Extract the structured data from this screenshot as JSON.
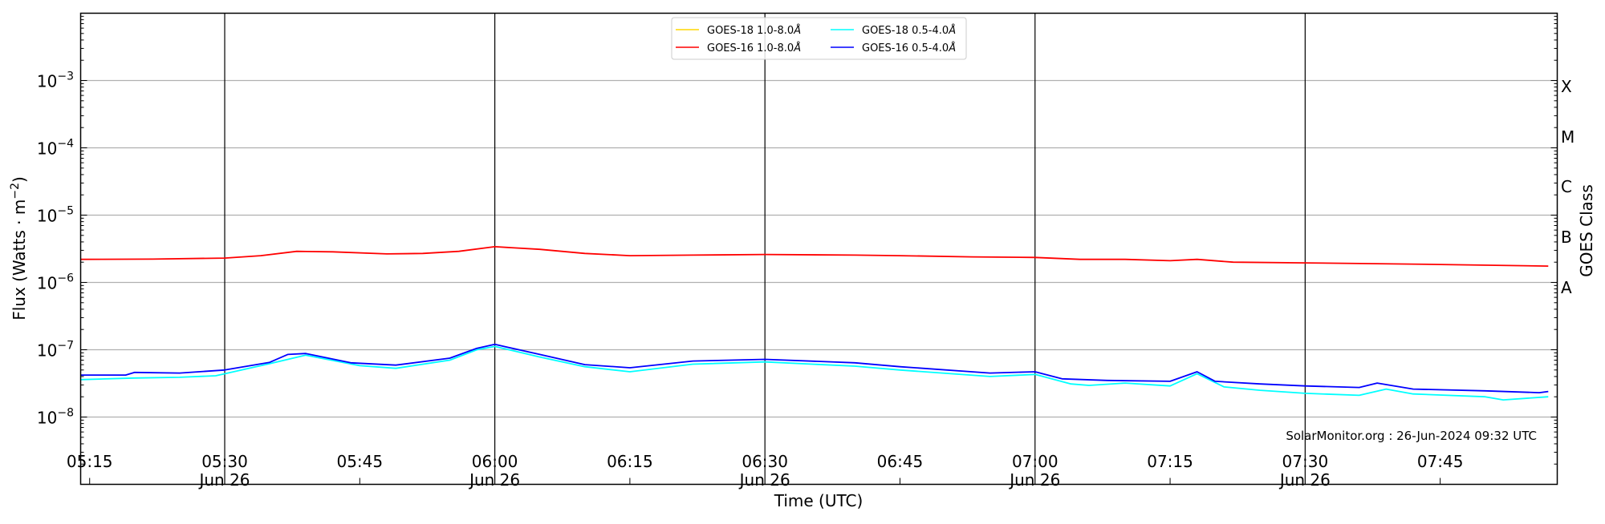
{
  "chart_data": {
    "type": "line",
    "xlabel": "Time (UTC)",
    "ylabel": "Flux (Watts · m",
    "ylabel_exponent": "−2",
    "ylabel_close": ")",
    "right_axis_label": "GOES Class",
    "y_scale": "log",
    "ylim": [
      1e-09,
      0.01
    ],
    "xlim": [
      "05:14",
      "07:58"
    ],
    "grid": "horizontal at decades; vertical at 30-min marks",
    "legend_placement": "top-center",
    "y_ticks": [
      {
        "exp": 3,
        "base": "10",
        "sup": "−3"
      },
      {
        "exp": 4,
        "base": "10",
        "sup": "−4"
      },
      {
        "exp": 5,
        "base": "10",
        "sup": "−5"
      },
      {
        "exp": 6,
        "base": "10",
        "sup": "−6"
      },
      {
        "exp": 7,
        "base": "10",
        "sup": "−7"
      },
      {
        "exp": 8,
        "base": "10",
        "sup": "−8"
      }
    ],
    "x_ticks": [
      {
        "time": "05:15",
        "label": "05:15",
        "date": ""
      },
      {
        "time": "05:30",
        "label": "05:30",
        "date": "Jun 26"
      },
      {
        "time": "05:45",
        "label": "05:45",
        "date": ""
      },
      {
        "time": "06:00",
        "label": "06:00",
        "date": "Jun 26"
      },
      {
        "time": "06:15",
        "label": "06:15",
        "date": ""
      },
      {
        "time": "06:30",
        "label": "06:30",
        "date": "Jun 26"
      },
      {
        "time": "06:45",
        "label": "06:45",
        "date": ""
      },
      {
        "time": "07:00",
        "label": "07:00",
        "date": "Jun 26"
      },
      {
        "time": "07:15",
        "label": "07:15",
        "date": ""
      },
      {
        "time": "07:30",
        "label": "07:30",
        "date": "Jun 26"
      },
      {
        "time": "07:45",
        "label": "07:45",
        "date": ""
      }
    ],
    "class_labels": [
      "X",
      "M",
      "C",
      "B",
      "A"
    ],
    "series": [
      {
        "name": "GOES-18 1.0-8.0Å",
        "label_main": "GOES-18 1.0-8.0",
        "color": "#ffd700",
        "points": []
      },
      {
        "name": "GOES-18 0.5-4.0Å",
        "label_main": "GOES-18 0.5-4.0",
        "color": "#00ffff",
        "points": [
          [
            "05:14",
            3.6e-08
          ],
          [
            "05:20",
            3.8e-08
          ],
          [
            "05:25",
            3.9e-08
          ],
          [
            "05:29",
            4.1e-08
          ],
          [
            "05:35",
            6.2e-08
          ],
          [
            "05:39",
            8.3e-08
          ],
          [
            "05:45",
            5.8e-08
          ],
          [
            "05:49",
            5.3e-08
          ],
          [
            "05:55",
            7e-08
          ],
          [
            "05:58",
            1e-07
          ],
          [
            "06:00",
            1.12e-07
          ],
          [
            "06:05",
            7.8e-08
          ],
          [
            "06:10",
            5.6e-08
          ],
          [
            "06:15",
            4.7e-08
          ],
          [
            "06:22",
            6.1e-08
          ],
          [
            "06:30",
            6.6e-08
          ],
          [
            "06:40",
            5.7e-08
          ],
          [
            "06:45",
            5e-08
          ],
          [
            "06:55",
            4e-08
          ],
          [
            "07:00",
            4.3e-08
          ],
          [
            "07:04",
            3.1e-08
          ],
          [
            "07:06",
            2.95e-08
          ],
          [
            "07:10",
            3.2e-08
          ],
          [
            "07:15",
            2.9e-08
          ],
          [
            "07:18",
            4.4e-08
          ],
          [
            "07:21",
            2.8e-08
          ],
          [
            "07:25",
            2.5e-08
          ],
          [
            "07:30",
            2.25e-08
          ],
          [
            "07:36",
            2.1e-08
          ],
          [
            "07:39",
            2.6e-08
          ],
          [
            "07:42",
            2.2e-08
          ],
          [
            "07:50",
            2e-08
          ],
          [
            "07:52",
            1.8e-08
          ],
          [
            "07:57",
            2e-08
          ]
        ]
      },
      {
        "name": "GOES-16 1.0-8.0Å",
        "label_main": "GOES-16 1.0-8.0",
        "color": "#ff0000",
        "points": [
          [
            "05:14",
            2.2e-06
          ],
          [
            "05:22",
            2.22e-06
          ],
          [
            "05:30",
            2.3e-06
          ],
          [
            "05:34",
            2.5e-06
          ],
          [
            "05:38",
            2.9e-06
          ],
          [
            "05:42",
            2.85e-06
          ],
          [
            "05:48",
            2.65e-06
          ],
          [
            "05:52",
            2.7e-06
          ],
          [
            "05:56",
            2.9e-06
          ],
          [
            "06:00",
            3.4e-06
          ],
          [
            "06:05",
            3.1e-06
          ],
          [
            "06:10",
            2.7e-06
          ],
          [
            "06:15",
            2.5e-06
          ],
          [
            "06:22",
            2.55e-06
          ],
          [
            "06:30",
            2.6e-06
          ],
          [
            "06:40",
            2.55e-06
          ],
          [
            "06:45",
            2.5e-06
          ],
          [
            "06:53",
            2.4e-06
          ],
          [
            "07:00",
            2.35e-06
          ],
          [
            "07:05",
            2.2e-06
          ],
          [
            "07:10",
            2.2e-06
          ],
          [
            "07:15",
            2.1e-06
          ],
          [
            "07:18",
            2.2e-06
          ],
          [
            "07:22",
            2e-06
          ],
          [
            "07:30",
            1.95e-06
          ],
          [
            "07:38",
            1.9e-06
          ],
          [
            "07:45",
            1.85e-06
          ],
          [
            "07:57",
            1.75e-06
          ]
        ]
      },
      {
        "name": "GOES-16 0.5-4.0Å",
        "label_main": "GOES-16 0.5-4.0",
        "color": "#0000ff",
        "points": [
          [
            "05:14",
            4.2e-08
          ],
          [
            "05:19",
            4.2e-08
          ],
          [
            "05:20",
            4.6e-08
          ],
          [
            "05:25",
            4.5e-08
          ],
          [
            "05:30",
            5e-08
          ],
          [
            "05:35",
            6.5e-08
          ],
          [
            "05:37",
            8.5e-08
          ],
          [
            "05:39",
            8.8e-08
          ],
          [
            "05:44",
            6.4e-08
          ],
          [
            "05:49",
            5.9e-08
          ],
          [
            "05:55",
            7.5e-08
          ],
          [
            "05:58",
            1.05e-07
          ],
          [
            "06:00",
            1.2e-07
          ],
          [
            "06:05",
            8.5e-08
          ],
          [
            "06:10",
            6e-08
          ],
          [
            "06:15",
            5.4e-08
          ],
          [
            "06:22",
            6.8e-08
          ],
          [
            "06:30",
            7.2e-08
          ],
          [
            "06:40",
            6.4e-08
          ],
          [
            "06:45",
            5.6e-08
          ],
          [
            "06:55",
            4.5e-08
          ],
          [
            "07:00",
            4.7e-08
          ],
          [
            "07:03",
            3.7e-08
          ],
          [
            "07:08",
            3.5e-08
          ],
          [
            "07:15",
            3.4e-08
          ],
          [
            "07:18",
            4.7e-08
          ],
          [
            "07:20",
            3.4e-08
          ],
          [
            "07:25",
            3.1e-08
          ],
          [
            "07:30",
            2.9e-08
          ],
          [
            "07:36",
            2.75e-08
          ],
          [
            "07:38",
            3.2e-08
          ],
          [
            "07:42",
            2.6e-08
          ],
          [
            "07:50",
            2.45e-08
          ],
          [
            "07:56",
            2.3e-08
          ],
          [
            "07:57",
            2.4e-08
          ]
        ]
      }
    ],
    "legend_unit": "Å",
    "annotation": "SolarMonitor.org : 26-Jun-2024 09:32 UTC"
  }
}
